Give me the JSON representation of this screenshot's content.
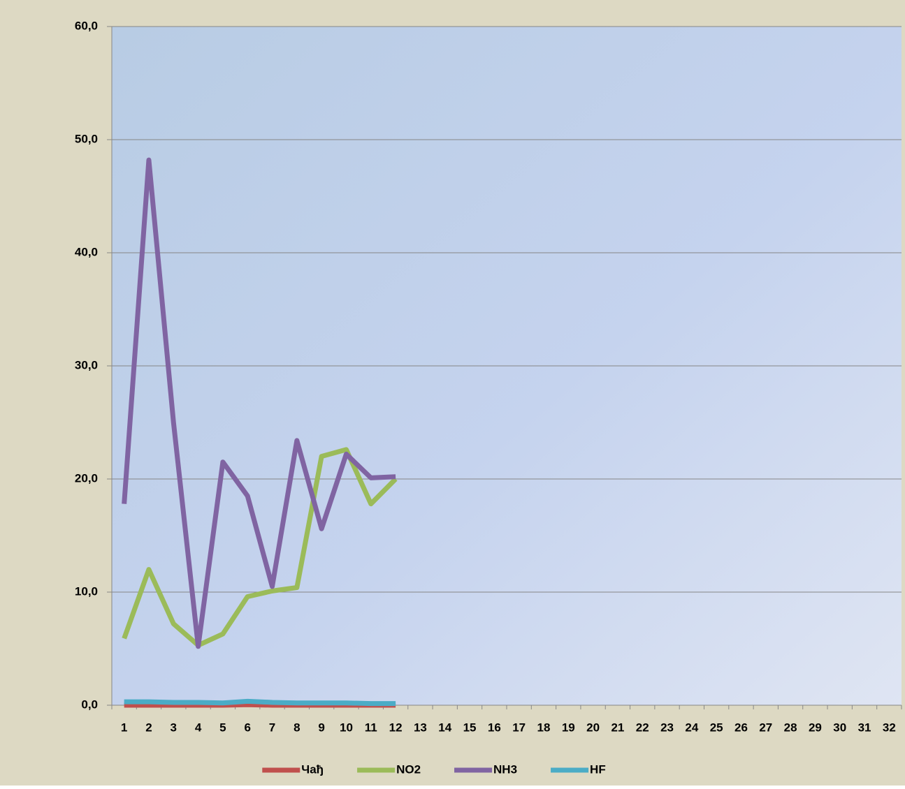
{
  "chart_data": {
    "type": "line",
    "categories": [
      "1",
      "2",
      "3",
      "4",
      "5",
      "6",
      "7",
      "8",
      "9",
      "10",
      "11",
      "12",
      "13",
      "14",
      "15",
      "16",
      "17",
      "18",
      "19",
      "20",
      "21",
      "22",
      "23",
      "24",
      "25",
      "26",
      "27",
      "28",
      "29",
      "30",
      "31",
      "32"
    ],
    "series": [
      {
        "name": "Чађ",
        "color": "#c0504d",
        "values": [
          0,
          0,
          0,
          0,
          0,
          0.05,
          0,
          0,
          0,
          0,
          0,
          0,
          null,
          null,
          null,
          null,
          null,
          null,
          null,
          null,
          null,
          null,
          null,
          null,
          null,
          null,
          null,
          null,
          null,
          null,
          null,
          null
        ]
      },
      {
        "name": "NO2",
        "color": "#9bbb59",
        "values": [
          5.9,
          12.0,
          7.2,
          5.3,
          6.3,
          9.6,
          10.1,
          10.4,
          22.0,
          22.6,
          17.8,
          20.0,
          null,
          null,
          null,
          null,
          null,
          null,
          null,
          null,
          null,
          null,
          null,
          null,
          null,
          null,
          null,
          null,
          null,
          null,
          null,
          null
        ]
      },
      {
        "name": "NH3",
        "color": "#8064a2",
        "values": [
          17.8,
          48.2,
          25.0,
          5.2,
          21.5,
          18.5,
          10.5,
          23.4,
          15.6,
          22.2,
          20.1,
          20.2,
          null,
          null,
          null,
          null,
          null,
          null,
          null,
          null,
          null,
          null,
          null,
          null,
          null,
          null,
          null,
          null,
          null,
          null,
          null,
          null
        ]
      },
      {
        "name": "HF",
        "color": "#4bacc6",
        "values": [
          0.3,
          0.3,
          0.25,
          0.25,
          0.2,
          0.35,
          0.25,
          0.2,
          0.2,
          0.2,
          0.15,
          0.15,
          null,
          null,
          null,
          null,
          null,
          null,
          null,
          null,
          null,
          null,
          null,
          null,
          null,
          null,
          null,
          null,
          null,
          null,
          null,
          null
        ]
      }
    ],
    "ylim": [
      0,
      60
    ],
    "yticks": [
      {
        "value": 0,
        "label": "0,0"
      },
      {
        "value": 10,
        "label": "10,0"
      },
      {
        "value": 20,
        "label": "20,0"
      },
      {
        "value": 30,
        "label": "30,0"
      },
      {
        "value": 40,
        "label": "40,0"
      },
      {
        "value": 50,
        "label": "50,0"
      },
      {
        "value": 60,
        "label": "60,0"
      }
    ],
    "grid": true,
    "legend": "bottom"
  }
}
